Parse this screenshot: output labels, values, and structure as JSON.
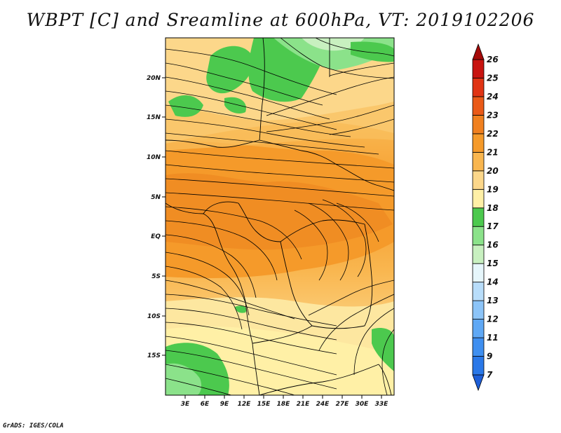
{
  "title": "WBPT [C] and Sreamline at 600hPa, VT: 2019102206",
  "credit": "GrADS: IGES/COLA",
  "map": {
    "lon_labels": [
      "3E",
      "6E",
      "9E",
      "12E",
      "15E",
      "18E",
      "21E",
      "24E",
      "27E",
      "30E",
      "33E"
    ],
    "lat_labels": [
      "20N",
      "15N",
      "10N",
      "5N",
      "EQ",
      "5S",
      "10S",
      "15S"
    ],
    "lon_range": [
      0,
      35
    ],
    "lat_range": [
      -20,
      24
    ]
  },
  "colorbar": {
    "labels": [
      "7",
      "9",
      "11",
      "12",
      "13",
      "14",
      "15",
      "16",
      "17",
      "18",
      "19",
      "20",
      "21",
      "22",
      "23",
      "24",
      "25",
      "26"
    ],
    "colors": [
      "#1e5fd8",
      "#2a78e8",
      "#3f8ff0",
      "#5fa8f5",
      "#8cc4f8",
      "#b8ddfa",
      "#e6f6fb",
      "#c8f0c0",
      "#8be28a",
      "#4cc94e",
      "#fff0a6",
      "#fcd78a",
      "#f9b64f",
      "#f59a2a",
      "#f0801f",
      "#ea5a18",
      "#e03414",
      "#c81410",
      "#a50a08"
    ]
  }
}
